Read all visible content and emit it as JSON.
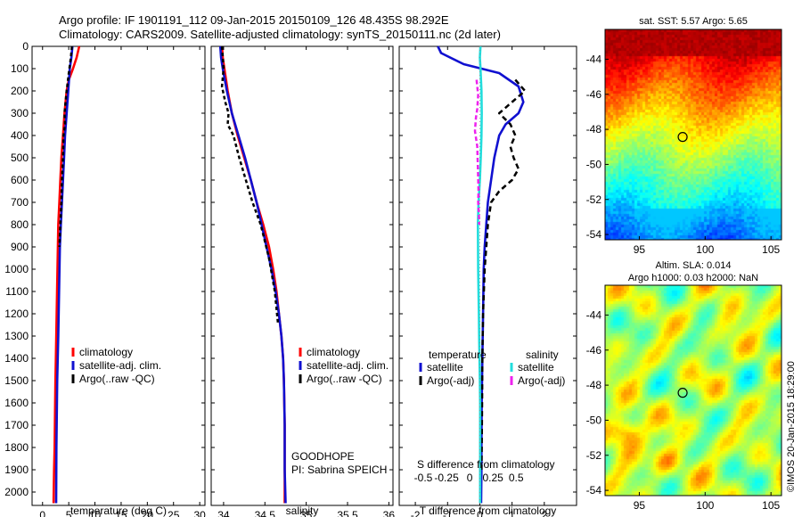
{
  "header": {
    "line1": "Argo profile: IF 1901191_112 09-Jan-2015 20150109_126 48.435S 98.292E",
    "line2": "Climatology: CARS2009. Satellite-adjusted climatology: synTS_20150111.nc (2d later)"
  },
  "colors": {
    "climatology": "#ff0000",
    "satellite": "#1010d0",
    "argo": "#000000",
    "satellite_salinity": "#22dddd",
    "argo_salinity": "#ee22ee"
  },
  "chart_data": [
    {
      "type": "line",
      "id": "temperature",
      "xlabel": "temperature (deg C)",
      "xlim": [
        -2,
        31
      ],
      "ylim": [
        2060,
        0
      ],
      "xticks": [
        0,
        5,
        10,
        15,
        20,
        25,
        30
      ],
      "xtick_labels": [
        "0",
        "5",
        "10",
        "15",
        "20",
        "25",
        "30"
      ],
      "yticks": [
        0,
        100,
        200,
        300,
        400,
        500,
        600,
        700,
        800,
        900,
        1000,
        1100,
        1200,
        1300,
        1400,
        1500,
        1600,
        1700,
        1800,
        1900,
        2000
      ],
      "ytick_labels": [
        "0",
        "100",
        "200",
        "300",
        "400",
        "500",
        "600",
        "700",
        "800",
        "900",
        "1000",
        "1100",
        "1200",
        "1300",
        "1400",
        "1500",
        "1600",
        "1700",
        "1800",
        "1900",
        "2000"
      ],
      "legend": [
        "climatology",
        "satellite-adj. clim.",
        "Argo(..raw -QC)"
      ],
      "series": [
        {
          "name": "climatology",
          "color": "#ff0000",
          "dash": "",
          "x": [
            7.0,
            6.5,
            5.8,
            5.0,
            4.6,
            4.2,
            3.9,
            3.6,
            3.4,
            3.2,
            3.0,
            2.85,
            2.7,
            2.55,
            2.45,
            2.4,
            2.35,
            2.3,
            2.2,
            2.1
          ],
          "y": [
            0,
            50,
            100,
            150,
            200,
            300,
            400,
            500,
            600,
            700,
            800,
            1000,
            1200,
            1400,
            1500,
            1600,
            1700,
            1800,
            1900,
            2050
          ]
        },
        {
          "name": "satellite-adj. clim.",
          "color": "#1010d0",
          "dash": "",
          "x": [
            5.7,
            5.5,
            5.2,
            4.9,
            4.6,
            4.3,
            4.1,
            3.9,
            3.7,
            3.5,
            3.3,
            3.15,
            3.0,
            2.9,
            2.8,
            2.75,
            2.7,
            2.65,
            2.6
          ],
          "y": [
            0,
            50,
            100,
            200,
            300,
            400,
            500,
            600,
            700,
            800,
            900,
            1100,
            1300,
            1400,
            1500,
            1600,
            1700,
            1800,
            2050
          ]
        },
        {
          "name": "Argo(..raw -QC)",
          "color": "#000000",
          "dash": "4,3",
          "x": [
            5.6,
            5.4,
            5.0,
            4.6,
            4.2,
            4.3,
            4.0,
            3.9,
            3.7,
            3.6,
            3.4,
            3.2
          ],
          "y": [
            0,
            50,
            120,
            200,
            300,
            350,
            400,
            500,
            600,
            700,
            800,
            900
          ]
        }
      ],
      "annotations": []
    },
    {
      "type": "line",
      "id": "salinity",
      "xlabel": "salinity",
      "xlim": [
        33.85,
        36.05
      ],
      "ylim": [
        2060,
        0
      ],
      "xticks": [
        34,
        34.5,
        35,
        35.5,
        36
      ],
      "xtick_labels": [
        "34",
        "34.5",
        "35",
        "35.5",
        "36"
      ],
      "legend": [
        "climatology",
        "satellite-adj. clim.",
        "Argo(..raw -QC)"
      ],
      "series": [
        {
          "name": "climatology",
          "color": "#ff0000",
          "dash": "",
          "x": [
            33.98,
            33.99,
            34.01,
            34.05,
            34.1,
            34.17,
            34.25,
            34.33,
            34.4,
            34.48,
            34.55,
            34.6,
            34.64,
            34.67,
            34.7,
            34.72,
            34.73,
            34.74,
            34.74,
            34.74
          ],
          "y": [
            0,
            50,
            100,
            200,
            300,
            400,
            500,
            600,
            700,
            800,
            900,
            1000,
            1100,
            1200,
            1300,
            1400,
            1500,
            1700,
            1900,
            2050
          ]
        },
        {
          "name": "satellite-adj. clim.",
          "color": "#1010d0",
          "dash": "",
          "x": [
            33.96,
            33.97,
            33.99,
            34.04,
            34.1,
            34.18,
            34.26,
            34.33,
            34.4,
            34.46,
            34.52,
            34.58,
            34.63,
            34.67,
            34.7,
            34.72,
            34.73,
            34.74,
            34.74,
            34.75
          ],
          "y": [
            0,
            50,
            100,
            200,
            300,
            400,
            500,
            600,
            700,
            800,
            900,
            1000,
            1100,
            1200,
            1300,
            1400,
            1500,
            1700,
            1900,
            2050
          ]
        },
        {
          "name": "Argo(..raw -QC)",
          "color": "#000000",
          "dash": "4,3",
          "x": [
            33.98,
            34.0,
            33.98,
            34.02,
            34.06,
            34.05,
            34.12,
            34.19,
            34.27,
            34.35,
            34.45,
            34.55,
            34.62,
            34.66
          ],
          "y": [
            0,
            100,
            180,
            250,
            300,
            350,
            400,
            500,
            600,
            700,
            800,
            950,
            1100,
            1250
          ]
        }
      ],
      "annotations": [
        "GOODHOPE",
        "PI: Sabrina SPEICH"
      ]
    },
    {
      "type": "line",
      "id": "difference",
      "xlabel": "T difference from climatology",
      "xlabel2": "S difference from climatology",
      "xlim": [
        -2.5,
        3.0
      ],
      "ylim": [
        2060,
        0
      ],
      "xticks": [
        -2,
        -1,
        0,
        1,
        2
      ],
      "xtick_labels": [
        "-2",
        "-1",
        "0",
        "1",
        "2"
      ],
      "sticks": [
        -0.5,
        -0.25,
        0,
        0.25,
        0.5
      ],
      "stick_labels": [
        "-0.5",
        "-0.25",
        "0",
        "0.25",
        "0.5"
      ],
      "legend_headers": [
        "temperature",
        "salinity"
      ],
      "legend": [
        "satellite",
        "Argo(-adj)",
        "satellite",
        "Argo(-adj)"
      ],
      "series": [
        {
          "name": "satellite",
          "color": "#1010d0",
          "dash": "",
          "x": [
            -1.3,
            -1.2,
            -0.5,
            0.6,
            1.2,
            1.35,
            1.2,
            0.8,
            0.6,
            0.45,
            0.35,
            0.25,
            0.2,
            0.15,
            0.12,
            0.1,
            0.08,
            0.06,
            0.05,
            0.05,
            0.04
          ],
          "y": [
            0,
            30,
            80,
            120,
            180,
            250,
            300,
            350,
            400,
            500,
            600,
            700,
            800,
            900,
            1000,
            1200,
            1400,
            1600,
            1800,
            1900,
            2050
          ]
        },
        {
          "name": "Argo(-adj)",
          "color": "#000000",
          "dash": "6,4",
          "x": [
            1.1,
            1.4,
            1.0,
            0.6,
            0.95,
            1.1,
            0.95,
            1.05,
            1.2,
            1.0,
            0.6,
            0.35,
            0.25,
            0.2,
            0.15,
            0.1,
            0.08,
            0.07,
            0.06,
            0.05
          ],
          "y": [
            150,
            200,
            250,
            300,
            350,
            400,
            450,
            500,
            550,
            600,
            650,
            700,
            800,
            900,
            1000,
            1200,
            1400,
            1600,
            1800,
            1900
          ]
        },
        {
          "name": "satellite",
          "color": "#22dddd",
          "dash": "",
          "x": [
            0.02,
            0.0,
            0.02,
            0.05,
            0.06,
            0.05,
            0.03,
            0.0,
            -0.04,
            -0.06,
            -0.05,
            -0.03,
            -0.02,
            -0.01,
            0.0,
            0.01,
            0.01,
            0.01,
            0.01
          ],
          "y": [
            0,
            50,
            100,
            200,
            300,
            400,
            500,
            600,
            700,
            800,
            1000,
            1200,
            1300,
            1400,
            1500,
            1600,
            1700,
            1800,
            2050
          ]
        },
        {
          "name": "Argo(-adj)",
          "color": "#ee22ee",
          "dash": "5,3",
          "x": [
            -0.1,
            -0.05,
            -0.08,
            -0.12,
            -0.15,
            -0.08,
            -0.06,
            -0.04,
            -0.05,
            -0.03,
            -0.02
          ],
          "y": [
            150,
            220,
            280,
            320,
            380,
            450,
            550,
            650,
            700,
            750,
            800
          ]
        }
      ]
    },
    {
      "type": "heatmap",
      "id": "sst-map",
      "title": "sat. SST: 5.57 Argo: 5.65",
      "xlim": [
        92.4,
        105.8
      ],
      "ylim": [
        -54.3,
        -42.3
      ],
      "xticks": [
        95,
        100,
        105
      ],
      "xtick_labels": [
        "95",
        "100",
        "105"
      ],
      "yticks": [
        -44,
        -46,
        -48,
        -50,
        -52,
        -54
      ],
      "ytick_labels": [
        "-44",
        "-46",
        "-48",
        "-50",
        "-52",
        "-54"
      ],
      "marker": {
        "lon": 98.292,
        "lat": -48.435
      }
    },
    {
      "type": "heatmap",
      "id": "sla-map",
      "title": "Altim. SLA: 0.014",
      "title2": "Argo h1000: 0.03 h2000: NaN",
      "xlim": [
        92.4,
        105.8
      ],
      "ylim": [
        -54.3,
        -42.3
      ],
      "xticks": [
        95,
        100,
        105
      ],
      "xtick_labels": [
        "95",
        "100",
        "105"
      ],
      "yticks": [
        -44,
        -46,
        -48,
        -50,
        -52,
        -54
      ],
      "ytick_labels": [
        "-44",
        "-46",
        "-48",
        "-50",
        "-52",
        "-54"
      ],
      "marker": {
        "lon": 98.292,
        "lat": -48.435
      },
      "side_label": "©IMOS 20-Jan-2015 18:29:00"
    }
  ]
}
